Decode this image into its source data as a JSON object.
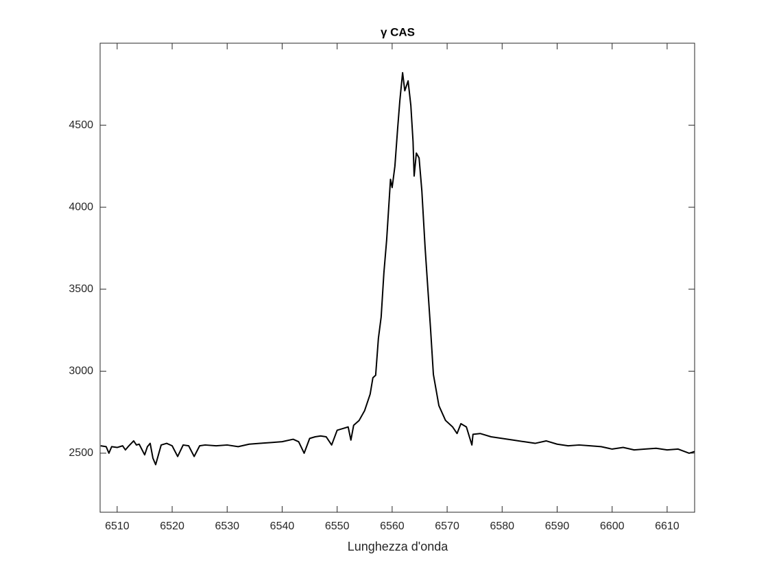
{
  "chart_data": {
    "type": "line",
    "title": "γ CAS",
    "xlabel": "Lunghezza d'onda",
    "x": [
      6507,
      6508,
      6508.5,
      6509,
      6510,
      6511,
      6511.5,
      6512,
      6513,
      6513.5,
      6514,
      6515,
      6515.5,
      6516,
      6516.5,
      6517,
      6518,
      6519,
      6520,
      6521,
      6522,
      6523,
      6524,
      6525,
      6526,
      6528,
      6530,
      6532,
      6534,
      6536,
      6538,
      6540,
      6542,
      6543,
      6544,
      6545,
      6546,
      6547,
      6548,
      6549,
      6550,
      6551,
      6552,
      6552.5,
      6553,
      6554,
      6555,
      6556,
      6556.5,
      6557,
      6557.5,
      6558,
      6558.5,
      6559,
      6559.7,
      6560,
      6560.5,
      6561,
      6561.4,
      6561.9,
      6562.3,
      6562.9,
      6563.4,
      6563.8,
      6564,
      6564.4,
      6564.9,
      6565.4,
      6566,
      6566.6,
      6567,
      6567.5,
      6568.5,
      6569.7,
      6571,
      6571.8,
      6572.5,
      6573.5,
      6574.5,
      6574.7,
      6576,
      6578,
      6580,
      6582,
      6584,
      6586,
      6588,
      6590,
      6592,
      6594,
      6596,
      6598,
      6600,
      6602,
      6604,
      6606,
      6608,
      6610,
      6612,
      6614,
      6615
    ],
    "values": [
      2545,
      2540,
      2500,
      2540,
      2535,
      2545,
      2520,
      2540,
      2575,
      2550,
      2555,
      2490,
      2540,
      2560,
      2470,
      2430,
      2550,
      2560,
      2545,
      2480,
      2550,
      2545,
      2480,
      2545,
      2550,
      2545,
      2550,
      2540,
      2555,
      2560,
      2565,
      2570,
      2585,
      2570,
      2500,
      2590,
      2600,
      2605,
      2600,
      2550,
      2640,
      2650,
      2660,
      2580,
      2670,
      2700,
      2760,
      2860,
      2960,
      2975,
      3200,
      3330,
      3600,
      3800,
      4170,
      4120,
      4250,
      4480,
      4650,
      4820,
      4710,
      4770,
      4620,
      4400,
      4190,
      4330,
      4300,
      4100,
      3750,
      3450,
      3250,
      2980,
      2790,
      2700,
      2660,
      2620,
      2680,
      2660,
      2550,
      2615,
      2620,
      2600,
      2590,
      2580,
      2570,
      2560,
      2575,
      2555,
      2545,
      2550,
      2545,
      2540,
      2525,
      2535,
      2520,
      2525,
      2530,
      2520,
      2525,
      2500,
      2510
    ],
    "color": "#000000",
    "xlim": [
      6506.9,
      6615
    ],
    "xticks": [
      6510,
      6520,
      6530,
      6540,
      6550,
      6560,
      6570,
      6580,
      6590,
      6600,
      6610
    ],
    "ylim": [
      2140,
      5000
    ],
    "yticks": [
      2500,
      3000,
      3500,
      4000,
      4500
    ],
    "grid": false
  }
}
